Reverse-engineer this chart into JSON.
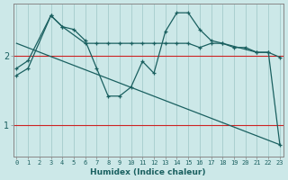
{
  "xlabel": "Humidex (Indice chaleur)",
  "x_ticks": [
    0,
    1,
    2,
    3,
    4,
    5,
    6,
    7,
    8,
    9,
    10,
    11,
    12,
    13,
    14,
    15,
    16,
    17,
    18,
    19,
    20,
    21,
    22,
    23
  ],
  "y_ticks": [
    1,
    2
  ],
  "ylim": [
    0.55,
    2.75
  ],
  "xlim": [
    -0.3,
    23.3
  ],
  "background_color": "#cce8e8",
  "grid_v_color": "#aad0d0",
  "grid_h_color": "#aad0d0",
  "line_color": "#1a6060",
  "hline_color": "#cc2222",
  "hlines": [
    1.0,
    2.0
  ],
  "series1_x": [
    0,
    1,
    3,
    4,
    6,
    7,
    8,
    9,
    10,
    11,
    12,
    13,
    14,
    15,
    16,
    17,
    18,
    19,
    20,
    21,
    22,
    23
  ],
  "series1_y": [
    1.82,
    1.93,
    2.58,
    2.42,
    2.18,
    2.18,
    2.18,
    2.18,
    2.18,
    2.18,
    2.18,
    2.18,
    2.18,
    2.18,
    2.12,
    2.18,
    2.18,
    2.12,
    2.12,
    2.05,
    2.05,
    1.98
  ],
  "series2_x": [
    0,
    1,
    3,
    4,
    5,
    6,
    7,
    8,
    9,
    10,
    11,
    12,
    13,
    14,
    15,
    16,
    17,
    18,
    21,
    22,
    23
  ],
  "series2_y": [
    1.72,
    1.82,
    2.58,
    2.42,
    2.38,
    2.22,
    1.82,
    1.42,
    1.42,
    1.55,
    1.92,
    1.75,
    2.35,
    2.62,
    2.62,
    2.38,
    2.22,
    2.18,
    2.05,
    2.05,
    0.72
  ],
  "series3_x": [
    0,
    23
  ],
  "series3_y": [
    2.18,
    0.72
  ]
}
